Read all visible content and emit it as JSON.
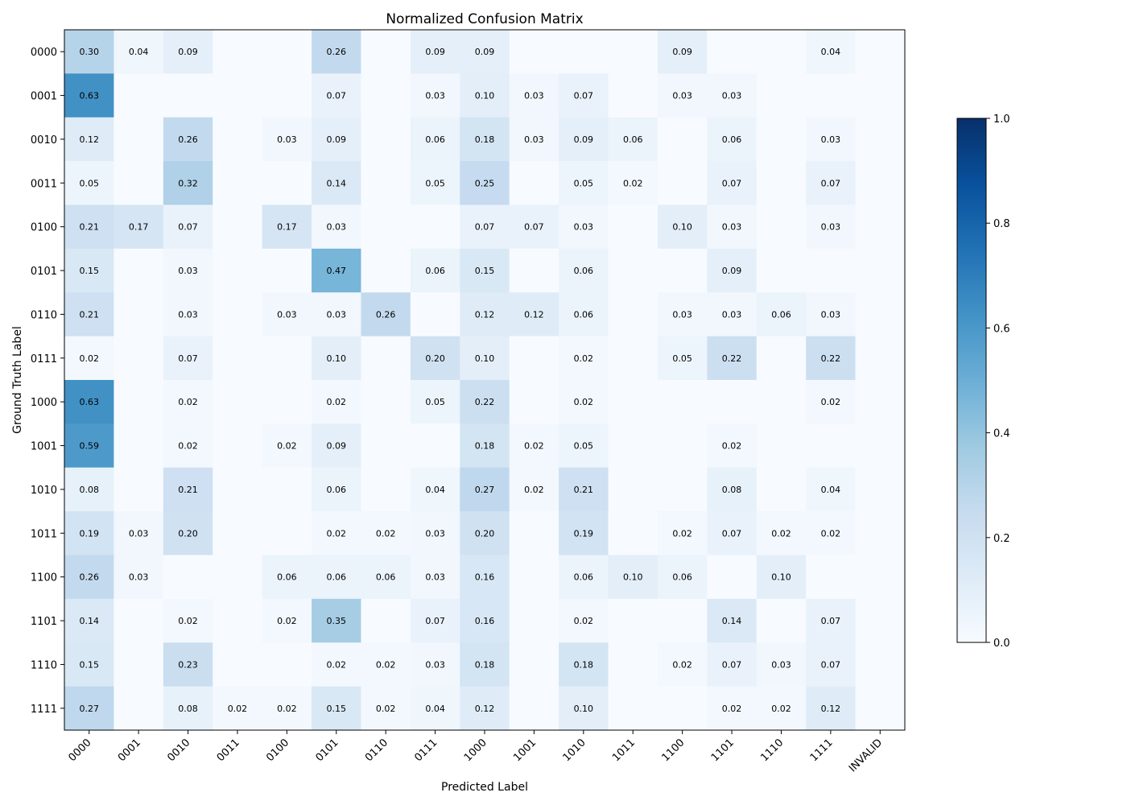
{
  "chart_data": {
    "type": "heatmap",
    "title": "Normalized Confusion Matrix",
    "xlabel": "Predicted Label",
    "ylabel": "Ground Truth Label",
    "x_categories": [
      "0000",
      "0001",
      "0010",
      "0011",
      "0100",
      "0101",
      "0110",
      "0111",
      "1000",
      "1001",
      "1010",
      "1011",
      "1100",
      "1101",
      "1110",
      "1111",
      "INVALID"
    ],
    "y_categories": [
      "0000",
      "0001",
      "0010",
      "0011",
      "0100",
      "0101",
      "0110",
      "0111",
      "1000",
      "1001",
      "1010",
      "1011",
      "1100",
      "1101",
      "1110",
      "1111"
    ],
    "values": [
      [
        0.3,
        0.04,
        0.09,
        0,
        0,
        0.26,
        0,
        0.09,
        0.09,
        0,
        0,
        0,
        0.09,
        0,
        0,
        0.04,
        0
      ],
      [
        0.63,
        0,
        0,
        0,
        0,
        0.07,
        0,
        0.03,
        0.1,
        0.03,
        0.07,
        0,
        0.03,
        0.03,
        0,
        0,
        0
      ],
      [
        0.12,
        0,
        0.26,
        0,
        0.03,
        0.09,
        0,
        0.06,
        0.18,
        0.03,
        0.09,
        0.06,
        0,
        0.06,
        0,
        0.03,
        0
      ],
      [
        0.05,
        0,
        0.32,
        0,
        0,
        0.14,
        0,
        0.05,
        0.25,
        0,
        0.05,
        0.02,
        0,
        0.07,
        0,
        0.07,
        0
      ],
      [
        0.21,
        0.17,
        0.07,
        0,
        0.17,
        0.03,
        0,
        0,
        0.07,
        0.07,
        0.03,
        0,
        0.1,
        0.03,
        0,
        0.03,
        0
      ],
      [
        0.15,
        0,
        0.03,
        0,
        0,
        0.47,
        0,
        0.06,
        0.15,
        0,
        0.06,
        0,
        0,
        0.09,
        0,
        0,
        0
      ],
      [
        0.21,
        0,
        0.03,
        0,
        0.03,
        0.03,
        0.26,
        0,
        0.12,
        0.12,
        0.06,
        0,
        0.03,
        0.03,
        0.06,
        0.03,
        0
      ],
      [
        0.02,
        0,
        0.07,
        0,
        0,
        0.1,
        0,
        0.2,
        0.1,
        0,
        0.02,
        0,
        0.05,
        0.22,
        0,
        0.22,
        0
      ],
      [
        0.63,
        0,
        0.02,
        0,
        0,
        0.02,
        0,
        0.05,
        0.22,
        0,
        0.02,
        0,
        0,
        0,
        0,
        0.02,
        0
      ],
      [
        0.59,
        0,
        0.02,
        0,
        0.02,
        0.09,
        0,
        0,
        0.18,
        0.02,
        0.05,
        0,
        0,
        0.02,
        0,
        0,
        0
      ],
      [
        0.08,
        0,
        0.21,
        0,
        0,
        0.06,
        0,
        0.04,
        0.27,
        0.02,
        0.21,
        0,
        0,
        0.08,
        0,
        0.04,
        0
      ],
      [
        0.19,
        0.03,
        0.2,
        0,
        0,
        0.02,
        0.02,
        0.03,
        0.2,
        0,
        0.19,
        0,
        0.02,
        0.07,
        0.02,
        0.02,
        0
      ],
      [
        0.26,
        0.03,
        0,
        0,
        0.06,
        0.06,
        0.06,
        0.03,
        0.16,
        0,
        0.06,
        0.1,
        0.06,
        0,
        0.1,
        0,
        0
      ],
      [
        0.14,
        0,
        0.02,
        0,
        0.02,
        0.35,
        0,
        0.07,
        0.16,
        0,
        0.02,
        0,
        0,
        0.14,
        0,
        0.07,
        0
      ],
      [
        0.15,
        0,
        0.23,
        0,
        0,
        0.02,
        0.02,
        0.03,
        0.18,
        0,
        0.18,
        0,
        0.02,
        0.07,
        0.03,
        0.07,
        0
      ],
      [
        0.27,
        0,
        0.08,
        0.02,
        0.02,
        0.15,
        0.02,
        0.04,
        0.12,
        0,
        0.1,
        0,
        0,
        0.02,
        0.02,
        0.12,
        0
      ]
    ],
    "value_format": "2 decimals; zero cells unlabeled",
    "colormap": "Blues",
    "color_range": [
      0.0,
      1.0
    ],
    "colorbar_ticks": [
      "0.0",
      "0.2",
      "0.4",
      "0.6",
      "0.8",
      "1.0"
    ],
    "colorbar_tick_values": [
      0.0,
      0.2,
      0.4,
      0.6,
      0.8,
      1.0
    ],
    "label_color_dark": "#000000",
    "label_color_light": "#ffffff"
  }
}
